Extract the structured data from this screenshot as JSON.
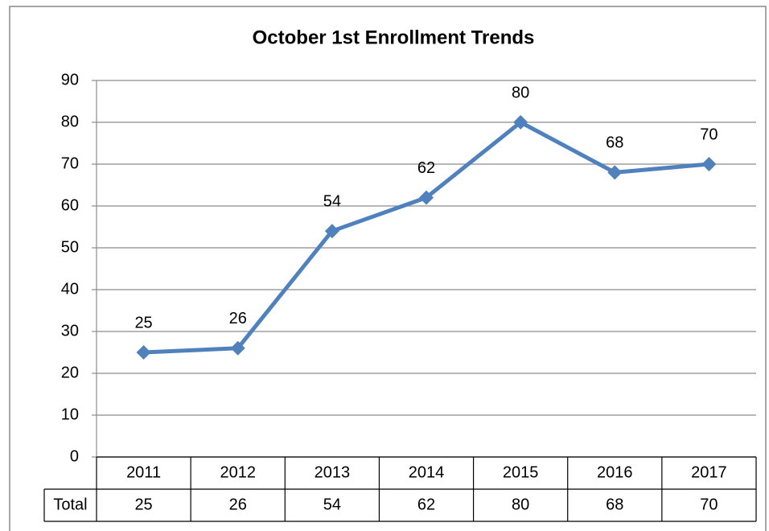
{
  "chart_data": {
    "type": "line",
    "title": "October 1st Enrollment Trends",
    "categories": [
      "2011",
      "2012",
      "2013",
      "2014",
      "2015",
      "2016",
      "2017"
    ],
    "series": [
      {
        "name": "Total",
        "color": "#4f81bd",
        "values": [
          25,
          26,
          54,
          62,
          80,
          68,
          70
        ]
      }
    ],
    "ylim": [
      0,
      90
    ],
    "yticks": [
      0,
      10,
      20,
      30,
      40,
      50,
      60,
      70,
      80,
      90
    ],
    "grid": true,
    "data_table": true
  }
}
